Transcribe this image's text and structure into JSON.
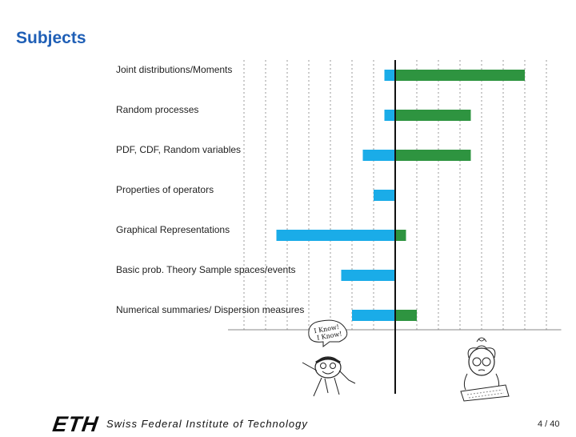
{
  "slide": {
    "title": "Subjects",
    "institute": "Swiss Federal Institute of Technology",
    "logo_text": "ETH",
    "page": {
      "current": 4,
      "total": 40,
      "text": "4 / 40"
    }
  },
  "colors": {
    "negative": "#1aace8",
    "positive": "#2e9440",
    "grid": "#999999",
    "axis": "#111111",
    "title": "#1f5fb6"
  },
  "illustrations": {
    "left": {
      "name": "student-knows-cartoon",
      "caption_lines": [
        "I Know!",
        "I Know!"
      ]
    },
    "right": {
      "name": "student-confused-cartoon"
    }
  },
  "chart_data": {
    "type": "bar",
    "orientation": "horizontal",
    "diverging": true,
    "categories": [
      "Joint distributions/Moments",
      "Random processes",
      "PDF, CDF, Random variables",
      "Properties of operators",
      "Graphical Representations",
      "Basic prob. Theory Sample spaces/events",
      "Numerical summaries/ Dispersion measures"
    ],
    "series": [
      {
        "name": "negative",
        "color": "#1aace8",
        "values": [
          -0.5,
          -0.5,
          -1.5,
          -1,
          -5.5,
          -2.5,
          -2
        ]
      },
      {
        "name": "positive",
        "color": "#2e9440",
        "values": [
          6,
          3.5,
          3.5,
          0,
          0.5,
          0,
          1
        ]
      }
    ],
    "xlim": [
      -7,
      7.5
    ],
    "gridlines": [
      -7,
      -6,
      -5,
      -4,
      -3,
      -2,
      -1,
      1,
      2,
      3,
      4,
      5,
      6,
      7
    ],
    "grid": "dotted vertical",
    "title": "",
    "xlabel": "",
    "ylabel": ""
  }
}
